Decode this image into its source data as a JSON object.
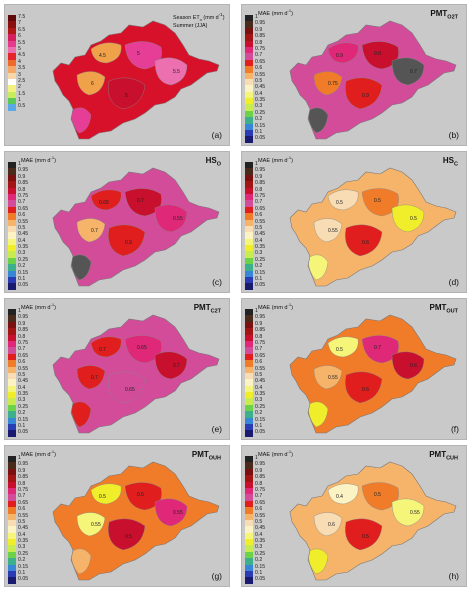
{
  "panels": [
    {
      "id": "a",
      "panel_label": "(a)",
      "title_main": "",
      "title_sub": "",
      "legend_title": "Season ET",
      "legend_title_sub": "o",
      "legend_unit": "(mm d",
      "legend_unit_sup": "-1",
      "legend_unit_close": ")",
      "legend_subtitle": "Summer (JJA)",
      "legend": [
        {
          "label": "7.5",
          "color": "#5e0a0a"
        },
        {
          "label": "7",
          "color": "#8a1010"
        },
        {
          "label": "6.5",
          "color": "#b01818"
        },
        {
          "label": "6",
          "color": "#d61d5e"
        },
        {
          "label": "5.5",
          "color": "#e23c8a"
        },
        {
          "label": "5",
          "color": "#ec6fb0"
        },
        {
          "label": "4.5",
          "color": "#e4252a"
        },
        {
          "label": "4",
          "color": "#ee6a2c"
        },
        {
          "label": "3.5",
          "color": "#f5a868"
        },
        {
          "label": "3",
          "color": "#f7d7a8"
        },
        {
          "label": "2.5",
          "color": "#ffffff"
        },
        {
          "label": "2",
          "color": "#f4f082"
        },
        {
          "label": "1.5",
          "color": "#c7ec5c"
        },
        {
          "label": "1",
          "color": "#5cc85a"
        },
        {
          "label": "0.5",
          "color": "#5aa9e6"
        }
      ],
      "fill_base": "#d8112a",
      "blobs": [
        {
          "color": "#f0a24a"
        },
        {
          "color": "#e63d96"
        },
        {
          "color": "#ec6fb0"
        },
        {
          "color": "#f0a24a"
        },
        {
          "color": "#c8102e"
        },
        {
          "color": "#e63d96"
        }
      ],
      "contour_labels": [
        "4.5",
        "5",
        "5.5",
        "6",
        "5"
      ]
    },
    {
      "id": "b",
      "panel_label": "(b)",
      "title_main": "PMT",
      "title_sub": "O2T",
      "legend_title": "MAE",
      "legend_title_sub": "",
      "legend_unit": "(mm d",
      "legend_unit_sup": "-1",
      "legend_unit_close": ")",
      "legend_subtitle": "",
      "legend": [
        {
          "label": "1",
          "color": "#222222"
        },
        {
          "label": "0.95",
          "color": "#4a2a1a"
        },
        {
          "label": "0.9",
          "color": "#7a1010"
        },
        {
          "label": "0.85",
          "color": "#a31515"
        },
        {
          "label": "0.8",
          "color": "#c8102e"
        },
        {
          "label": "0.75",
          "color": "#e02878"
        },
        {
          "label": "0.7",
          "color": "#d24c9a"
        },
        {
          "label": "0.65",
          "color": "#e01e1e"
        },
        {
          "label": "0.6",
          "color": "#f07c2a"
        },
        {
          "label": "0.55",
          "color": "#f6b46a"
        },
        {
          "label": "0.5",
          "color": "#f8dcb4"
        },
        {
          "label": "0.45",
          "color": "#fbf3c4"
        },
        {
          "label": "0.4",
          "color": "#f5f57a"
        },
        {
          "label": "0.35",
          "color": "#f0ee2a"
        },
        {
          "label": "0.3",
          "color": "#c8ec50"
        },
        {
          "label": "0.25",
          "color": "#6cd24a"
        },
        {
          "label": "0.2",
          "color": "#3cb08a"
        },
        {
          "label": "0.15",
          "color": "#3a86d6"
        },
        {
          "label": "0.1",
          "color": "#2a3cb4"
        },
        {
          "label": "0.05",
          "color": "#1a1a6e"
        }
      ],
      "fill_base": "#d24c9a",
      "blobs": [
        {
          "color": "#e02878"
        },
        {
          "color": "#c8102e"
        },
        {
          "color": "#555555"
        },
        {
          "color": "#f07c2a"
        },
        {
          "color": "#e01e1e"
        },
        {
          "color": "#555555"
        }
      ],
      "contour_labels": [
        "0.9",
        "0.8",
        "0.7",
        "0.75",
        "0.9"
      ]
    },
    {
      "id": "c",
      "panel_label": "(c)",
      "title_main": "HS",
      "title_sub": "O",
      "legend_title": "MAE",
      "legend_title_sub": "",
      "legend_unit": "(mm d",
      "legend_unit_sup": "-1",
      "legend_unit_close": ")",
      "legend_subtitle": "",
      "legend": [
        {
          "label": "1",
          "color": "#222222"
        },
        {
          "label": "0.95",
          "color": "#4a2a1a"
        },
        {
          "label": "0.9",
          "color": "#7a1010"
        },
        {
          "label": "0.85",
          "color": "#a31515"
        },
        {
          "label": "0.8",
          "color": "#c8102e"
        },
        {
          "label": "0.75",
          "color": "#e02878"
        },
        {
          "label": "0.7",
          "color": "#d24c9a"
        },
        {
          "label": "0.65",
          "color": "#e01e1e"
        },
        {
          "label": "0.6",
          "color": "#f07c2a"
        },
        {
          "label": "0.55",
          "color": "#f6b46a"
        },
        {
          "label": "0.5",
          "color": "#f8dcb4"
        },
        {
          "label": "0.45",
          "color": "#fbf3c4"
        },
        {
          "label": "0.4",
          "color": "#f5f57a"
        },
        {
          "label": "0.35",
          "color": "#f0ee2a"
        },
        {
          "label": "0.3",
          "color": "#c8ec50"
        },
        {
          "label": "0.25",
          "color": "#6cd24a"
        },
        {
          "label": "0.2",
          "color": "#3cb08a"
        },
        {
          "label": "0.15",
          "color": "#3a86d6"
        },
        {
          "label": "0.1",
          "color": "#2a3cb4"
        },
        {
          "label": "0.05",
          "color": "#1a1a6e"
        }
      ],
      "fill_base": "#d24c9a",
      "blobs": [
        {
          "color": "#e01e1e"
        },
        {
          "color": "#c8102e"
        },
        {
          "color": "#e02878"
        },
        {
          "color": "#f6b46a"
        },
        {
          "color": "#e01e1e"
        },
        {
          "color": "#555555"
        }
      ],
      "contour_labels": [
        "0.65",
        "0.7",
        "0.55",
        "0.7",
        "0.9"
      ]
    },
    {
      "id": "d",
      "panel_label": "(d)",
      "title_main": "HS",
      "title_sub": "C",
      "legend_title": "MAE",
      "legend_title_sub": "",
      "legend_unit": "(mm d",
      "legend_unit_sup": "-1",
      "legend_unit_close": ")",
      "legend_subtitle": "",
      "legend": [
        {
          "label": "1",
          "color": "#222222"
        },
        {
          "label": "0.95",
          "color": "#4a2a1a"
        },
        {
          "label": "0.9",
          "color": "#7a1010"
        },
        {
          "label": "0.85",
          "color": "#a31515"
        },
        {
          "label": "0.8",
          "color": "#c8102e"
        },
        {
          "label": "0.75",
          "color": "#e02878"
        },
        {
          "label": "0.7",
          "color": "#d24c9a"
        },
        {
          "label": "0.65",
          "color": "#e01e1e"
        },
        {
          "label": "0.6",
          "color": "#f07c2a"
        },
        {
          "label": "0.55",
          "color": "#f6b46a"
        },
        {
          "label": "0.5",
          "color": "#f8dcb4"
        },
        {
          "label": "0.45",
          "color": "#fbf3c4"
        },
        {
          "label": "0.4",
          "color": "#f5f57a"
        },
        {
          "label": "0.35",
          "color": "#f0ee2a"
        },
        {
          "label": "0.3",
          "color": "#c8ec50"
        },
        {
          "label": "0.25",
          "color": "#6cd24a"
        },
        {
          "label": "0.2",
          "color": "#3cb08a"
        },
        {
          "label": "0.15",
          "color": "#3a86d6"
        },
        {
          "label": "0.1",
          "color": "#2a3cb4"
        },
        {
          "label": "0.05",
          "color": "#1a1a6e"
        }
      ],
      "fill_base": "#f6b46a",
      "blobs": [
        {
          "color": "#f8dcb4"
        },
        {
          "color": "#f07c2a"
        },
        {
          "color": "#f0ee2a"
        },
        {
          "color": "#f8dcb4"
        },
        {
          "color": "#e01e1e"
        },
        {
          "color": "#f5f57a"
        }
      ],
      "contour_labels": [
        "0.5",
        "0.5",
        "0.5",
        "0.55",
        "0.6"
      ]
    },
    {
      "id": "e",
      "panel_label": "(e)",
      "title_main": "PMT",
      "title_sub": "C2T",
      "legend_title": "MAE",
      "legend_title_sub": "",
      "legend_unit": "(mm d",
      "legend_unit_sup": "-1",
      "legend_unit_close": ")",
      "legend_subtitle": "",
      "legend": [
        {
          "label": "1",
          "color": "#222222"
        },
        {
          "label": "0.95",
          "color": "#4a2a1a"
        },
        {
          "label": "0.9",
          "color": "#7a1010"
        },
        {
          "label": "0.85",
          "color": "#a31515"
        },
        {
          "label": "0.8",
          "color": "#c8102e"
        },
        {
          "label": "0.75",
          "color": "#e02878"
        },
        {
          "label": "0.7",
          "color": "#d24c9a"
        },
        {
          "label": "0.65",
          "color": "#e01e1e"
        },
        {
          "label": "0.6",
          "color": "#f07c2a"
        },
        {
          "label": "0.55",
          "color": "#f6b46a"
        },
        {
          "label": "0.5",
          "color": "#f8dcb4"
        },
        {
          "label": "0.45",
          "color": "#fbf3c4"
        },
        {
          "label": "0.4",
          "color": "#f5f57a"
        },
        {
          "label": "0.35",
          "color": "#f0ee2a"
        },
        {
          "label": "0.3",
          "color": "#c8ec50"
        },
        {
          "label": "0.25",
          "color": "#6cd24a"
        },
        {
          "label": "0.2",
          "color": "#3cb08a"
        },
        {
          "label": "0.15",
          "color": "#3a86d6"
        },
        {
          "label": "0.1",
          "color": "#2a3cb4"
        },
        {
          "label": "0.05",
          "color": "#1a1a6e"
        }
      ],
      "fill_base": "#d24c9a",
      "blobs": [
        {
          "color": "#e01e1e"
        },
        {
          "color": "#e02878"
        },
        {
          "color": "#c8102e"
        },
        {
          "color": "#e01e1e"
        },
        {
          "color": "#d24c9a"
        },
        {
          "color": "#e01e1e"
        }
      ],
      "contour_labels": [
        "0.7",
        "0.65",
        "0.7",
        "0.7",
        "0.65"
      ]
    },
    {
      "id": "f",
      "panel_label": "(f)",
      "title_main": "PMT",
      "title_sub": "OUT",
      "legend_title": "MAE",
      "legend_title_sub": "",
      "legend_unit": "(mm d",
      "legend_unit_sup": "-1",
      "legend_unit_close": ")",
      "legend_subtitle": "",
      "legend": [
        {
          "label": "1",
          "color": "#222222"
        },
        {
          "label": "0.95",
          "color": "#4a2a1a"
        },
        {
          "label": "0.9",
          "color": "#7a1010"
        },
        {
          "label": "0.85",
          "color": "#a31515"
        },
        {
          "label": "0.8",
          "color": "#c8102e"
        },
        {
          "label": "0.75",
          "color": "#e02878"
        },
        {
          "label": "0.7",
          "color": "#d24c9a"
        },
        {
          "label": "0.65",
          "color": "#e01e1e"
        },
        {
          "label": "0.6",
          "color": "#f07c2a"
        },
        {
          "label": "0.55",
          "color": "#f6b46a"
        },
        {
          "label": "0.5",
          "color": "#f8dcb4"
        },
        {
          "label": "0.45",
          "color": "#fbf3c4"
        },
        {
          "label": "0.4",
          "color": "#f5f57a"
        },
        {
          "label": "0.35",
          "color": "#f0ee2a"
        },
        {
          "label": "0.3",
          "color": "#c8ec50"
        },
        {
          "label": "0.25",
          "color": "#6cd24a"
        },
        {
          "label": "0.2",
          "color": "#3cb08a"
        },
        {
          "label": "0.15",
          "color": "#3a86d6"
        },
        {
          "label": "0.1",
          "color": "#2a3cb4"
        },
        {
          "label": "0.05",
          "color": "#1a1a6e"
        }
      ],
      "fill_base": "#f07c2a",
      "blobs": [
        {
          "color": "#f5f57a"
        },
        {
          "color": "#e02878"
        },
        {
          "color": "#c8102e"
        },
        {
          "color": "#f6b46a"
        },
        {
          "color": "#e01e1e"
        },
        {
          "color": "#f0ee2a"
        }
      ],
      "contour_labels": [
        "0.5",
        "0.7",
        "0.6",
        "0.55",
        "0.6"
      ]
    },
    {
      "id": "g",
      "panel_label": "(g)",
      "title_main": "PMT",
      "title_sub": "OUH",
      "legend_title": "MAE",
      "legend_title_sub": "",
      "legend_unit": "(mm d",
      "legend_unit_sup": "-1",
      "legend_unit_close": ")",
      "legend_subtitle": "",
      "legend": [
        {
          "label": "1",
          "color": "#222222"
        },
        {
          "label": "0.95",
          "color": "#4a2a1a"
        },
        {
          "label": "0.9",
          "color": "#7a1010"
        },
        {
          "label": "0.85",
          "color": "#a31515"
        },
        {
          "label": "0.8",
          "color": "#c8102e"
        },
        {
          "label": "0.75",
          "color": "#e02878"
        },
        {
          "label": "0.7",
          "color": "#d24c9a"
        },
        {
          "label": "0.65",
          "color": "#e01e1e"
        },
        {
          "label": "0.6",
          "color": "#f07c2a"
        },
        {
          "label": "0.55",
          "color": "#f6b46a"
        },
        {
          "label": "0.5",
          "color": "#f8dcb4"
        },
        {
          "label": "0.45",
          "color": "#fbf3c4"
        },
        {
          "label": "0.4",
          "color": "#f5f57a"
        },
        {
          "label": "0.35",
          "color": "#f0ee2a"
        },
        {
          "label": "0.3",
          "color": "#c8ec50"
        },
        {
          "label": "0.25",
          "color": "#6cd24a"
        },
        {
          "label": "0.2",
          "color": "#3cb08a"
        },
        {
          "label": "0.15",
          "color": "#3a86d6"
        },
        {
          "label": "0.1",
          "color": "#2a3cb4"
        },
        {
          "label": "0.05",
          "color": "#1a1a6e"
        }
      ],
      "fill_base": "#f07c2a",
      "blobs": [
        {
          "color": "#f0ee2a"
        },
        {
          "color": "#e01e1e"
        },
        {
          "color": "#e02878"
        },
        {
          "color": "#f5f57a"
        },
        {
          "color": "#c8102e"
        },
        {
          "color": "#f6b46a"
        }
      ],
      "contour_labels": [
        "0.5",
        "0.5",
        "0.55",
        "0.55",
        "0.5"
      ]
    },
    {
      "id": "h",
      "panel_label": "(h)",
      "title_main": "PMT",
      "title_sub": "CUH",
      "legend_title": "MAE",
      "legend_title_sub": "",
      "legend_unit": "(mm d",
      "legend_unit_sup": "-1",
      "legend_unit_close": ")",
      "legend_subtitle": "",
      "legend": [
        {
          "label": "1",
          "color": "#222222"
        },
        {
          "label": "0.95",
          "color": "#4a2a1a"
        },
        {
          "label": "0.9",
          "color": "#7a1010"
        },
        {
          "label": "0.85",
          "color": "#a31515"
        },
        {
          "label": "0.8",
          "color": "#c8102e"
        },
        {
          "label": "0.75",
          "color": "#e02878"
        },
        {
          "label": "0.7",
          "color": "#d24c9a"
        },
        {
          "label": "0.65",
          "color": "#e01e1e"
        },
        {
          "label": "0.6",
          "color": "#f07c2a"
        },
        {
          "label": "0.55",
          "color": "#f6b46a"
        },
        {
          "label": "0.5",
          "color": "#f8dcb4"
        },
        {
          "label": "0.45",
          "color": "#fbf3c4"
        },
        {
          "label": "0.4",
          "color": "#f5f57a"
        },
        {
          "label": "0.35",
          "color": "#f0ee2a"
        },
        {
          "label": "0.3",
          "color": "#c8ec50"
        },
        {
          "label": "0.25",
          "color": "#6cd24a"
        },
        {
          "label": "0.2",
          "color": "#3cb08a"
        },
        {
          "label": "0.15",
          "color": "#3a86d6"
        },
        {
          "label": "0.1",
          "color": "#2a3cb4"
        },
        {
          "label": "0.05",
          "color": "#1a1a6e"
        }
      ],
      "fill_base": "#f6b46a",
      "blobs": [
        {
          "color": "#fbf3c4"
        },
        {
          "color": "#f07c2a"
        },
        {
          "color": "#f5f57a"
        },
        {
          "color": "#f8dcb4"
        },
        {
          "color": "#e01e1e"
        },
        {
          "color": "#f0ee2a"
        }
      ],
      "contour_labels": [
        "0.4",
        "0.5",
        "0.55",
        "0.6",
        "0.5"
      ]
    }
  ]
}
